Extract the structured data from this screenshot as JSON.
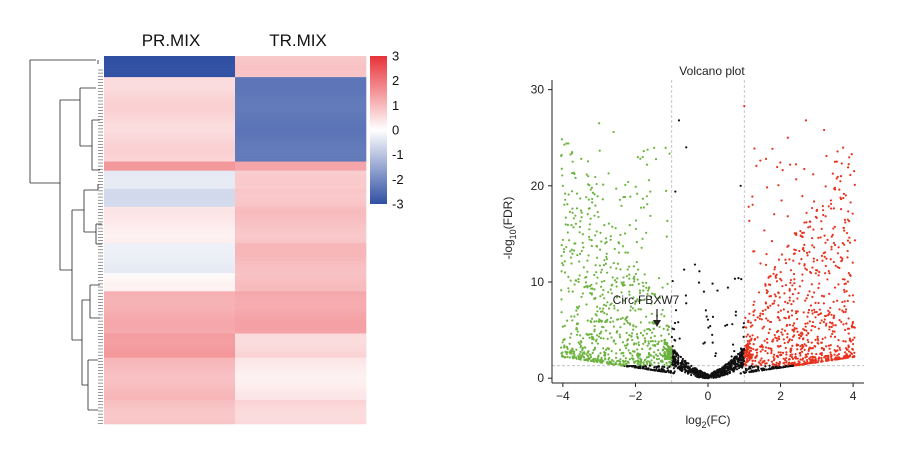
{
  "chart_data": [
    {
      "type": "heatmap",
      "columns": [
        "PR.MIX",
        "TR.MIX"
      ],
      "color_scale": {
        "min": -3,
        "max": 3,
        "low_color": "#2f4fa3",
        "mid_color": "#ffffff",
        "high_color": "#e8323a",
        "ticks": [
          "3",
          "2",
          "1",
          "0",
          "-1",
          "-2",
          "-3"
        ]
      },
      "row_blocks": [
        {
          "rows": 7,
          "values": [
            -3.0,
            0.8
          ]
        },
        {
          "rows": 28,
          "values": [
            0.6,
            -2.3
          ]
        },
        {
          "rows": 3,
          "values": [
            1.6,
            1.4
          ]
        },
        {
          "rows": 6,
          "values": [
            -0.4,
            0.7
          ]
        },
        {
          "rows": 6,
          "values": [
            -0.6,
            0.9
          ]
        },
        {
          "rows": 12,
          "values": [
            0.3,
            0.9
          ]
        },
        {
          "rows": 10,
          "values": [
            -0.3,
            1.0
          ]
        },
        {
          "rows": 6,
          "values": [
            0.1,
            0.9
          ]
        },
        {
          "rows": 14,
          "values": [
            1.2,
            1.3
          ]
        },
        {
          "rows": 8,
          "values": [
            1.5,
            0.6
          ]
        },
        {
          "rows": 14,
          "values": [
            1.0,
            0.3
          ]
        },
        {
          "rows": 8,
          "values": [
            0.9,
            0.6
          ]
        }
      ],
      "dendrogram": true
    },
    {
      "type": "scatter",
      "title": "Volcano plot",
      "xlabel_base": "log",
      "xlabel_sub": "2",
      "xlabel_rest": "(FC)",
      "ylabel_pre": "-log",
      "ylabel_sub": "10",
      "ylabel_rest": "(FDR)",
      "xlim": [
        -4.3,
        4.3
      ],
      "ylim": [
        -0.5,
        31
      ],
      "xticks": [
        -4,
        -2,
        0,
        2,
        4
      ],
      "yticks": [
        0,
        10,
        20,
        30
      ],
      "fc_threshold": [
        -1,
        1
      ],
      "fdr_threshold": 1.3,
      "colors": {
        "down": "#6cb33f",
        "up": "#e8321e",
        "ns": "#111111"
      },
      "outliers": [
        {
          "x": 1.0,
          "y": 28.3
        },
        {
          "x": -0.8,
          "y": 26.8
        },
        {
          "x": -3.0,
          "y": 26.5
        },
        {
          "x": 2.7,
          "y": 26.8
        },
        {
          "x": 3.2,
          "y": 25.8
        },
        {
          "x": -2.6,
          "y": 25.6
        },
        {
          "x": 2.2,
          "y": 25.0
        },
        {
          "x": -3.9,
          "y": 24.4
        },
        {
          "x": -0.6,
          "y": 24.0
        },
        {
          "x": 3.5,
          "y": 22.5
        },
        {
          "x": -1.8,
          "y": 23.0
        },
        {
          "x": 1.6,
          "y": 22.8
        },
        {
          "x": -3.3,
          "y": 21.0
        },
        {
          "x": 2.9,
          "y": 21.2
        },
        {
          "x": -2.2,
          "y": 20.4
        },
        {
          "x": -4.0,
          "y": 20.0
        },
        {
          "x": 0.9,
          "y": 20.0
        },
        {
          "x": -0.9,
          "y": 19.4
        },
        {
          "x": 3.8,
          "y": 19.0
        },
        {
          "x": -2.9,
          "y": 18.6
        }
      ],
      "annotation": {
        "text": "Circ-FBXW7",
        "x": -1.4,
        "y": 4.3
      }
    }
  ]
}
